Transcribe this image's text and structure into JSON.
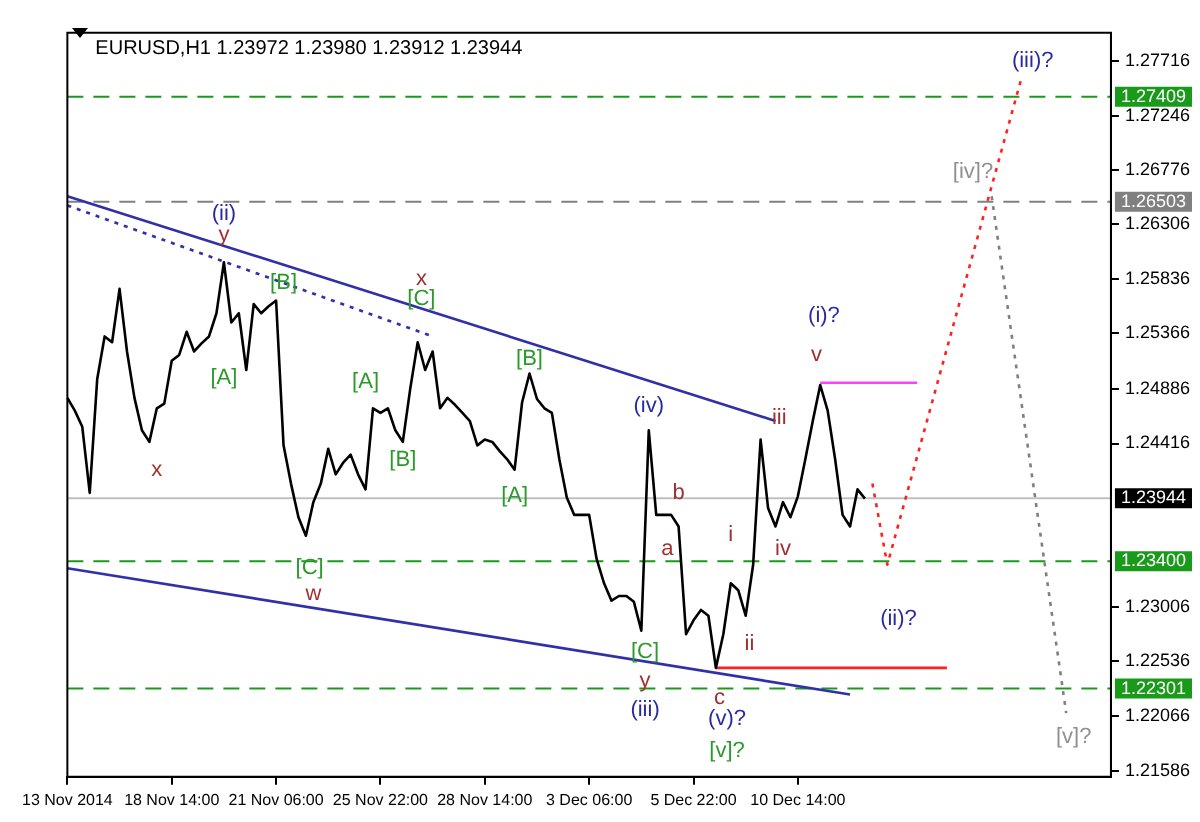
{
  "chart_data": {
    "type": "line",
    "title": "EURUSD,H1 1.23972 1.23980 1.23912 1.23944",
    "marker": "none",
    "categories": [
      "13 Nov 2014",
      null,
      null,
      null,
      null,
      null,
      null,
      null,
      null,
      null,
      null,
      null,
      null,
      null,
      "18 Nov 14:00",
      null,
      null,
      null,
      null,
      null,
      null,
      null,
      null,
      null,
      null,
      null,
      null,
      null,
      "21 Nov 06:00",
      null,
      null,
      null,
      null,
      null,
      null,
      null,
      null,
      null,
      null,
      null,
      null,
      null,
      "25 Nov 22:00",
      null,
      null,
      null,
      null,
      null,
      null,
      null,
      null,
      null,
      null,
      null,
      null,
      null,
      "28 Nov 14:00",
      null,
      null,
      null,
      null,
      null,
      null,
      null,
      null,
      null,
      null,
      null,
      null,
      null,
      "3 Dec 06:00",
      null,
      null,
      null,
      null,
      null,
      null,
      null,
      null,
      null,
      null,
      null,
      null,
      null,
      "5 Dec 22:00",
      null,
      null,
      null,
      null,
      null,
      null,
      null,
      null,
      null,
      null,
      null,
      null,
      null,
      "10 Dec 14:00",
      null,
      null,
      null,
      null,
      null,
      null,
      null,
      null,
      null,
      null,
      null,
      null,
      null,
      null,
      null,
      null,
      null,
      null,
      null,
      null,
      null,
      null,
      null,
      null,
      null,
      null,
      null,
      null,
      null,
      null,
      null,
      null,
      null,
      null,
      null,
      null,
      null,
      null,
      null,
      null,
      null,
      null
    ],
    "ylim": [
      1.2154,
      1.2796
    ],
    "yticks": [
      1.21586,
      1.22066,
      1.22536,
      1.23006,
      1.24416,
      1.24886,
      1.25366,
      1.25836,
      1.26306,
      1.26776,
      1.27246,
      1.27716
    ],
    "series": [
      {
        "color": "#000000",
        "line_style": "solid",
        "values": [
          1.2481,
          1.247,
          1.2456,
          1.2399,
          1.2497,
          1.2534,
          1.2529,
          1.2575,
          1.2521,
          1.2481,
          1.2453,
          1.2443,
          1.2472,
          1.2476,
          1.2513,
          1.2518,
          1.2538,
          1.2521,
          1.2528,
          1.2534,
          1.2554,
          1.2598,
          1.2546,
          1.2554,
          1.2505,
          1.2562,
          1.2554,
          1.256,
          1.2565,
          1.244,
          1.2407,
          1.2378,
          1.2362,
          1.2391,
          1.2407,
          1.2437,
          1.2415,
          1.2425,
          1.2432,
          1.2415,
          1.2402,
          1.2472,
          1.2468,
          1.2472,
          1.2453,
          1.2443,
          1.2489,
          1.2529,
          1.2505,
          1.2521,
          1.2472,
          1.2481,
          1.2475,
          1.2468,
          1.2461,
          1.244,
          1.2445,
          1.2443,
          1.2435,
          1.2428,
          1.2419,
          1.2477,
          1.2502,
          1.248,
          1.2472,
          1.2468,
          1.2428,
          1.2395,
          1.238,
          1.238,
          1.238,
          1.2342,
          1.2321,
          1.2306,
          1.231,
          1.231,
          1.2305,
          1.228,
          1.2453,
          1.238,
          1.238,
          1.238,
          1.237,
          1.2277,
          1.2289,
          1.2298,
          1.2293,
          1.2248,
          1.2277,
          1.2321,
          1.2315,
          1.2293,
          1.2337,
          1.2445,
          1.2386,
          1.237,
          1.2391,
          1.2378,
          1.2396,
          1.2428,
          1.2461,
          1.2492,
          1.247,
          1.2428,
          1.238,
          1.237,
          1.2402,
          1.2394,
          null,
          null,
          null,
          null,
          null,
          null,
          null,
          null,
          null,
          null,
          null,
          null,
          null,
          null,
          null,
          null,
          null,
          null,
          null,
          null,
          null,
          null,
          null,
          null,
          null,
          null,
          null,
          null,
          null,
          null,
          null,
          null,
          null
        ]
      },
      {
        "color": "#ff2020",
        "line_style": "dotted",
        "values": [
          null,
          null,
          null,
          null,
          null,
          null,
          null,
          null,
          null,
          null,
          null,
          null,
          null,
          null,
          null,
          null,
          null,
          null,
          null,
          null,
          null,
          null,
          null,
          null,
          null,
          null,
          null,
          null,
          null,
          null,
          null,
          null,
          null,
          null,
          null,
          null,
          null,
          null,
          null,
          null,
          null,
          null,
          null,
          null,
          null,
          null,
          null,
          null,
          null,
          null,
          null,
          null,
          null,
          null,
          null,
          null,
          null,
          null,
          null,
          null,
          null,
          null,
          null,
          null,
          null,
          null,
          null,
          null,
          null,
          null,
          null,
          null,
          null,
          null,
          null,
          null,
          null,
          null,
          null,
          null,
          null,
          null,
          null,
          null,
          null,
          null,
          null,
          null,
          null,
          null,
          null,
          null,
          null,
          null,
          null,
          null,
          null,
          null,
          null,
          null,
          null,
          null,
          null,
          null,
          null,
          null,
          null,
          null,
          1.2407,
          null,
          1.2337,
          null,
          null,
          null,
          null,
          null,
          null,
          null,
          null,
          null,
          null,
          null,
          null,
          null,
          null,
          null,
          null,
          null,
          1.2757,
          null,
          null,
          null,
          null,
          null,
          null,
          null,
          null,
          null,
          null,
          null,
          null
        ]
      },
      {
        "color": "#808080",
        "line_style": "dotted",
        "values": [
          null,
          null,
          null,
          null,
          null,
          null,
          null,
          null,
          null,
          null,
          null,
          null,
          null,
          null,
          null,
          null,
          null,
          null,
          null,
          null,
          null,
          null,
          null,
          null,
          null,
          null,
          null,
          null,
          null,
          null,
          null,
          null,
          null,
          null,
          null,
          null,
          null,
          null,
          null,
          null,
          null,
          null,
          null,
          null,
          null,
          null,
          null,
          null,
          null,
          null,
          null,
          null,
          null,
          null,
          null,
          null,
          null,
          null,
          null,
          null,
          null,
          null,
          null,
          null,
          null,
          null,
          null,
          null,
          null,
          null,
          null,
          null,
          null,
          null,
          null,
          null,
          null,
          null,
          null,
          null,
          null,
          null,
          null,
          null,
          null,
          null,
          null,
          null,
          null,
          null,
          null,
          null,
          null,
          null,
          null,
          null,
          null,
          null,
          null,
          null,
          null,
          null,
          null,
          null,
          null,
          null,
          null,
          null,
          null,
          null,
          null,
          null,
          null,
          null,
          null,
          null,
          null,
          null,
          null,
          null,
          null,
          null,
          null,
          null,
          1.2655,
          null,
          null,
          null,
          null,
          null,
          null,
          null,
          null,
          null,
          1.2209,
          null,
          null,
          null,
          null,
          null,
          null
        ]
      },
      {
        "color": "#3030a8",
        "line_style": "solid",
        "values": [
          1.2655,
          null,
          null,
          null,
          null,
          null,
          null,
          null,
          null,
          null,
          null,
          null,
          null,
          null,
          null,
          null,
          null,
          null,
          null,
          null,
          null,
          null,
          null,
          null,
          null,
          null,
          null,
          null,
          null,
          null,
          null,
          null,
          null,
          null,
          null,
          null,
          null,
          null,
          null,
          null,
          null,
          null,
          null,
          null,
          null,
          null,
          null,
          null,
          null,
          null,
          null,
          null,
          null,
          null,
          null,
          null,
          null,
          null,
          null,
          null,
          null,
          null,
          null,
          null,
          null,
          null,
          null,
          null,
          null,
          null,
          null,
          null,
          null,
          null,
          null,
          null,
          null,
          null,
          null,
          null,
          null,
          null,
          null,
          null,
          null,
          null,
          null,
          null,
          null,
          null,
          null,
          null,
          null,
          null,
          null,
          1.2461,
          null,
          null,
          null,
          null,
          null,
          null,
          null,
          null,
          null,
          null,
          null,
          null,
          null,
          null,
          null,
          null,
          null,
          null,
          null,
          null,
          null,
          null,
          null,
          null,
          null,
          null,
          null,
          null,
          null,
          null,
          null,
          null,
          null,
          null,
          null,
          null,
          null,
          null,
          null,
          null,
          null,
          null,
          null,
          null,
          null
        ]
      },
      {
        "color": "#3030a8",
        "line_style": "dotted",
        "values": [
          1.2647,
          null,
          null,
          null,
          null,
          null,
          null,
          null,
          null,
          null,
          null,
          null,
          null,
          null,
          null,
          null,
          null,
          null,
          null,
          null,
          null,
          null,
          null,
          null,
          null,
          null,
          null,
          null,
          null,
          null,
          null,
          null,
          null,
          null,
          null,
          null,
          null,
          null,
          null,
          null,
          null,
          null,
          null,
          null,
          null,
          null,
          null,
          null,
          null,
          1.2534,
          null,
          null,
          null,
          null,
          null,
          null,
          null,
          null,
          null,
          null,
          null,
          null,
          null,
          null,
          null,
          null,
          null,
          null,
          null,
          null,
          null,
          null,
          null,
          null,
          null,
          null,
          null,
          null,
          null,
          null,
          null,
          null,
          null,
          null,
          null,
          null,
          null,
          null,
          null,
          null,
          null,
          null,
          null,
          null,
          null,
          null,
          null,
          null,
          null,
          null,
          null,
          null,
          null,
          null,
          null,
          null,
          null,
          null,
          null,
          null,
          null,
          null,
          null,
          null,
          null,
          null,
          null,
          null,
          null,
          null,
          null,
          null,
          null,
          null,
          null,
          null,
          null,
          null,
          null,
          null,
          null,
          null,
          null,
          null,
          null,
          null,
          null,
          null,
          null,
          null,
          null
        ]
      },
      {
        "color": "#3030a8",
        "line_style": "solid",
        "values": [
          1.2334,
          null,
          null,
          null,
          null,
          null,
          null,
          null,
          null,
          null,
          null,
          null,
          null,
          null,
          null,
          null,
          null,
          null,
          null,
          null,
          null,
          null,
          null,
          null,
          null,
          null,
          null,
          null,
          null,
          null,
          null,
          null,
          null,
          null,
          null,
          null,
          null,
          null,
          null,
          null,
          null,
          null,
          null,
          null,
          null,
          null,
          null,
          null,
          null,
          null,
          null,
          null,
          null,
          null,
          null,
          null,
          null,
          null,
          null,
          null,
          null,
          null,
          null,
          null,
          null,
          null,
          null,
          null,
          null,
          null,
          null,
          null,
          null,
          null,
          null,
          null,
          null,
          null,
          null,
          null,
          null,
          null,
          null,
          null,
          null,
          null,
          null,
          null,
          null,
          null,
          null,
          null,
          null,
          null,
          null,
          null,
          null,
          null,
          null,
          null,
          null,
          null,
          null,
          null,
          null,
          1.2225,
          null,
          null,
          null,
          null,
          null,
          null,
          null,
          null,
          null,
          null,
          null,
          null,
          null,
          null,
          null,
          null,
          null,
          null,
          null,
          null,
          null,
          null,
          null,
          null,
          null,
          null,
          null,
          null,
          null,
          null,
          null,
          null,
          null,
          null,
          null
        ]
      },
      {
        "color": "#ff40ff",
        "line_style": "solid",
        "values": [
          null,
          null,
          null,
          null,
          null,
          null,
          null,
          null,
          null,
          null,
          null,
          null,
          null,
          null,
          null,
          null,
          null,
          null,
          null,
          null,
          null,
          null,
          null,
          null,
          null,
          null,
          null,
          null,
          null,
          null,
          null,
          null,
          null,
          null,
          null,
          null,
          null,
          null,
          null,
          null,
          null,
          null,
          null,
          null,
          null,
          null,
          null,
          null,
          null,
          null,
          null,
          null,
          null,
          null,
          null,
          null,
          null,
          null,
          null,
          null,
          null,
          null,
          null,
          null,
          null,
          null,
          null,
          null,
          null,
          null,
          null,
          null,
          null,
          null,
          null,
          null,
          null,
          null,
          null,
          null,
          null,
          null,
          null,
          null,
          null,
          null,
          null,
          null,
          null,
          null,
          null,
          null,
          null,
          null,
          null,
          null,
          null,
          null,
          null,
          null,
          null,
          1.2494,
          null,
          null,
          null,
          null,
          null,
          null,
          null,
          null,
          null,
          null,
          null,
          null,
          1.2494,
          null,
          null,
          null,
          null,
          null,
          null,
          null,
          null,
          null,
          null,
          null,
          null,
          null,
          null,
          null,
          null,
          null,
          null,
          null,
          null,
          null,
          null,
          null,
          null,
          null,
          null
        ]
      },
      {
        "color": "#ff2020",
        "line_style": "solid",
        "values": [
          null,
          null,
          null,
          null,
          null,
          null,
          null,
          null,
          null,
          null,
          null,
          null,
          null,
          null,
          null,
          null,
          null,
          null,
          null,
          null,
          null,
          null,
          null,
          null,
          null,
          null,
          null,
          null,
          null,
          null,
          null,
          null,
          null,
          null,
          null,
          null,
          null,
          null,
          null,
          null,
          null,
          null,
          null,
          null,
          null,
          null,
          null,
          null,
          null,
          null,
          null,
          null,
          null,
          null,
          null,
          null,
          null,
          null,
          null,
          null,
          null,
          null,
          null,
          null,
          null,
          null,
          null,
          null,
          null,
          null,
          null,
          null,
          null,
          null,
          null,
          null,
          null,
          null,
          null,
          null,
          null,
          null,
          null,
          null,
          null,
          null,
          null,
          1.2248,
          null,
          null,
          null,
          null,
          null,
          null,
          null,
          null,
          null,
          null,
          null,
          null,
          null,
          null,
          null,
          null,
          null,
          null,
          null,
          null,
          null,
          null,
          null,
          null,
          null,
          null,
          null,
          null,
          null,
          null,
          1.2248,
          null,
          null,
          null,
          null,
          null,
          null,
          null,
          null,
          null,
          null,
          null,
          null,
          null,
          null,
          null,
          null,
          null,
          null,
          null,
          null,
          null,
          null
        ]
      }
    ],
    "ref_lines": [
      {
        "axis": "y",
        "value": 1.27409,
        "label": "1.27409",
        "color": "#1a9a1a",
        "line_style": "dashed"
      },
      {
        "axis": "y",
        "value": 1.26503,
        "label": "1.26503",
        "color": "#808080",
        "line_style": "dashed"
      },
      {
        "axis": "y",
        "value": 1.23944,
        "label": "1.23944",
        "color": "#c0c0c0",
        "line_style": "solid"
      },
      {
        "axis": "y",
        "value": 1.234,
        "label": "1.23400",
        "color": "#1a9a1a",
        "line_style": "dashed"
      },
      {
        "axis": "y",
        "value": 1.22301,
        "label": "1.22301",
        "color": "#1a9a1a",
        "line_style": "dashed"
      }
    ],
    "annotations": [
      "(ii)",
      "y",
      "[B]",
      "[A]",
      "x",
      "[C]",
      "w",
      "x",
      "[C]",
      "[A]",
      "[B]",
      "[B]",
      "[A]",
      "(iv)",
      "b",
      "a",
      "[C]",
      "y",
      "(iii)",
      "iii",
      "i",
      "iv",
      "ii",
      "c",
      "(v)?",
      "[v]?",
      "(i)?",
      "v",
      "(ii)?",
      "(iii)?",
      "[iv]?",
      "[v]?"
    ]
  }
}
